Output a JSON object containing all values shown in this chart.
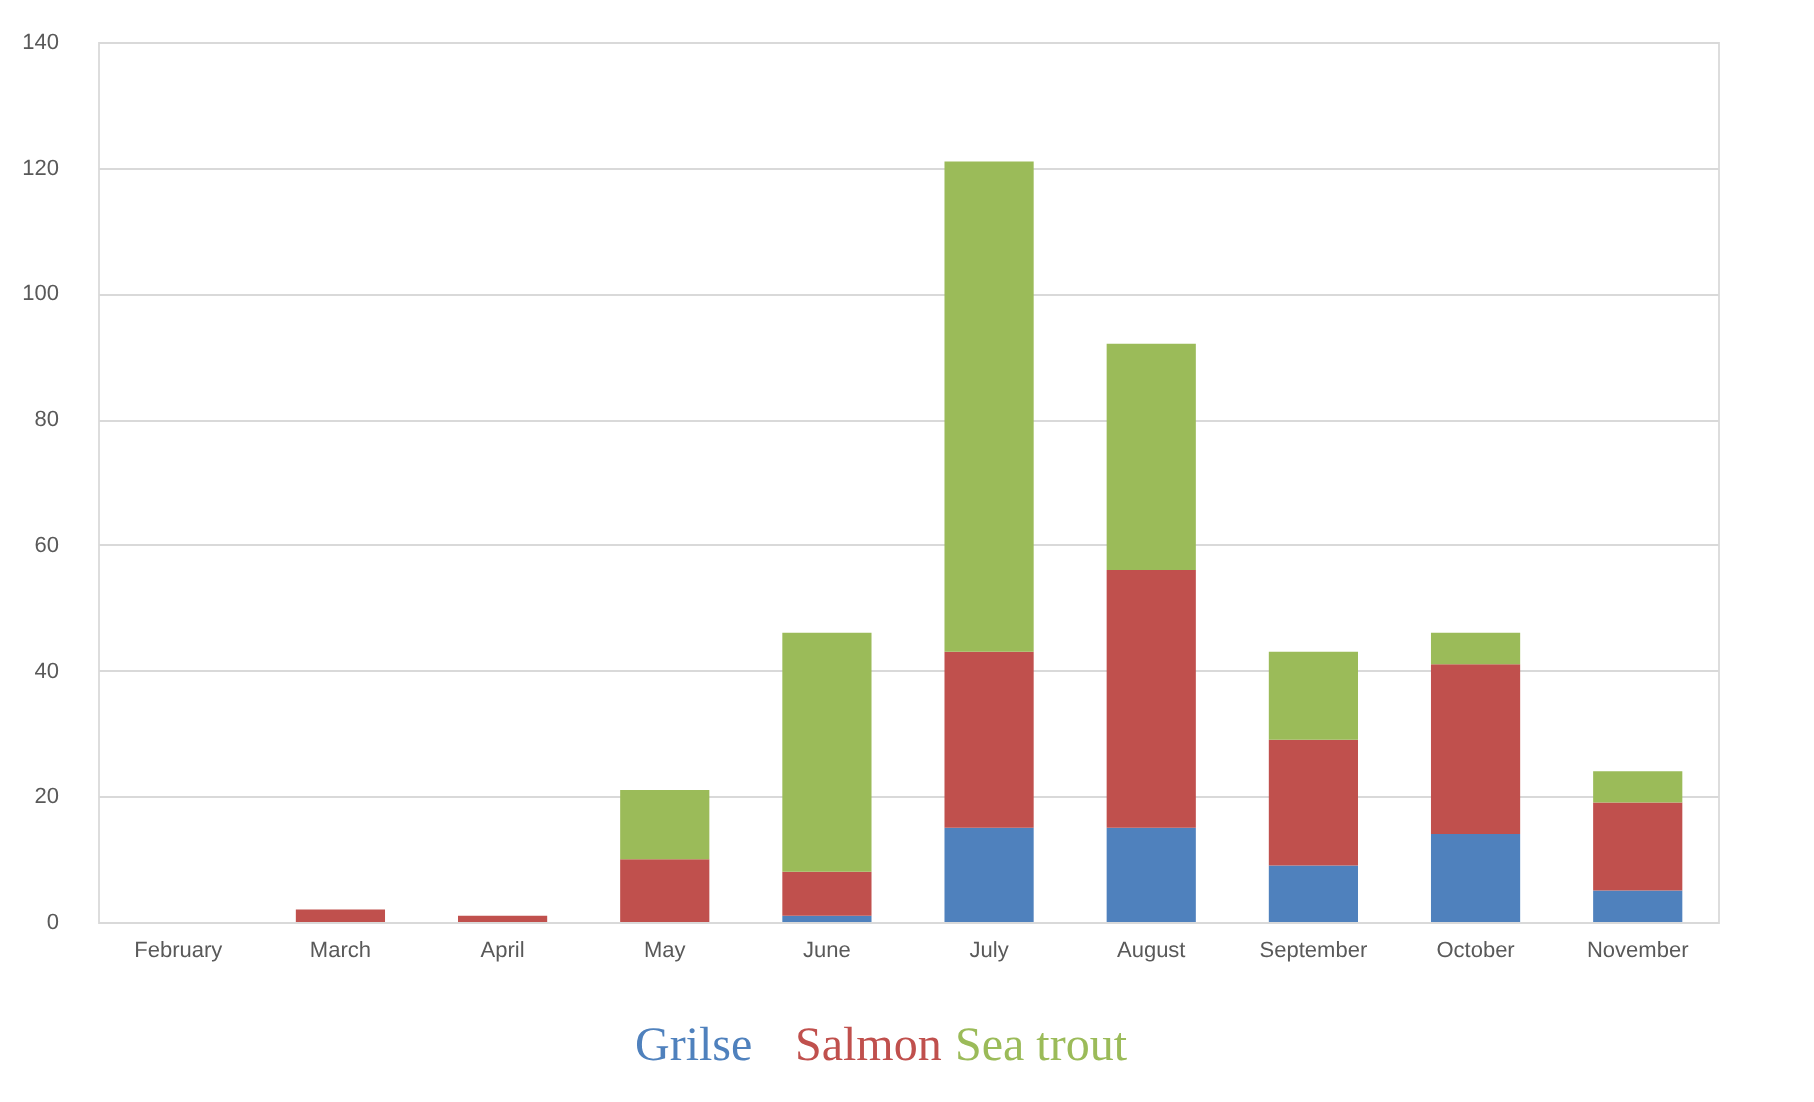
{
  "chart_data": {
    "type": "bar",
    "stacked": true,
    "categories": [
      "February",
      "March",
      "April",
      "May",
      "June",
      "July",
      "August",
      "September",
      "October",
      "November"
    ],
    "series": [
      {
        "name": "Grilse",
        "color": "#4f81bd",
        "values": [
          0,
          0,
          0,
          0,
          1,
          15,
          15,
          9,
          14,
          5
        ]
      },
      {
        "name": "Salmon",
        "color": "#c0504d",
        "values": [
          0,
          2,
          1,
          10,
          7,
          28,
          41,
          20,
          27,
          14
        ]
      },
      {
        "name": "Sea trout",
        "color": "#9bbb59",
        "values": [
          0,
          0,
          0,
          11,
          38,
          78,
          36,
          14,
          5,
          5
        ]
      }
    ],
    "ylim": [
      0,
      140
    ],
    "yticks": [
      0,
      20,
      40,
      60,
      80,
      100,
      120,
      140
    ],
    "grid": "y",
    "legend": "bottom"
  }
}
